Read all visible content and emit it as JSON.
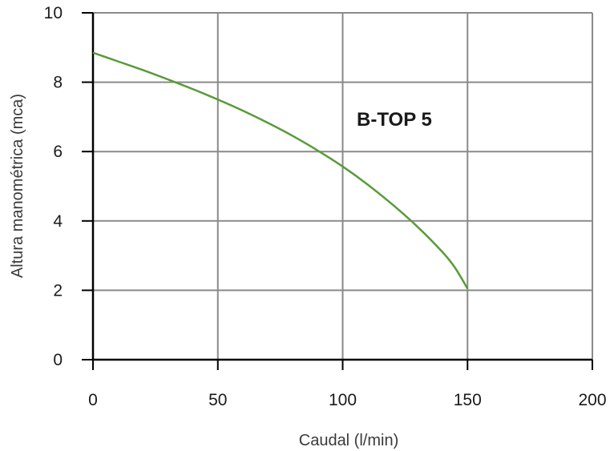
{
  "chart_data": {
    "type": "line",
    "title": "",
    "xlabel": "Caudal (l/min)",
    "ylabel": "Altura manométrica (mca)",
    "xlim": [
      0,
      200
    ],
    "ylim": [
      0,
      10
    ],
    "xticks": [
      0,
      50,
      100,
      150,
      200
    ],
    "yticks": [
      0,
      2,
      4,
      6,
      8,
      10
    ],
    "grid": true,
    "annotation": "B-TOP 5",
    "series": [
      {
        "color": "#5a9a3c",
        "x": [
          0,
          10,
          20,
          30,
          40,
          50,
          60,
          70,
          80,
          90,
          100,
          110,
          120,
          130,
          140,
          145,
          150
        ],
        "y": [
          8.85,
          8.6,
          8.35,
          8.08,
          7.8,
          7.5,
          7.18,
          6.83,
          6.45,
          6.03,
          5.57,
          5.05,
          4.47,
          3.83,
          3.1,
          2.65,
          2.05
        ]
      }
    ]
  }
}
